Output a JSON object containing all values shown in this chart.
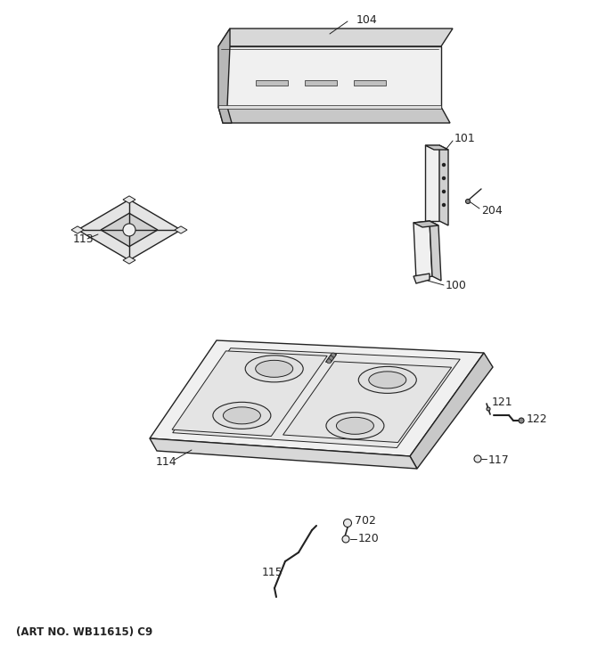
{
  "bg_color": "#ffffff",
  "line_color": "#222222",
  "footer_text": "(ART NO. WB11615) C9",
  "lw": 1.0
}
